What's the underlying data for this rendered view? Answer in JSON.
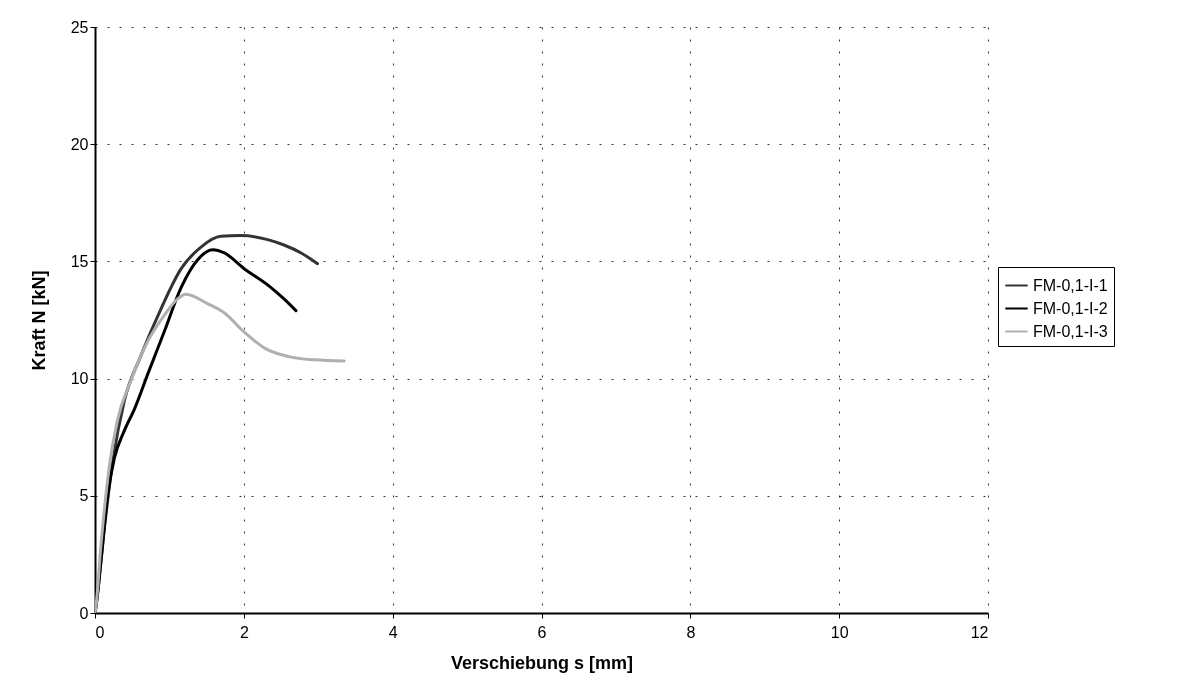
{
  "chart_data": {
    "type": "line",
    "xlabel": "Verschiebung s [mm]",
    "ylabel": "Kraft N [kN]",
    "xlim": [
      0,
      12
    ],
    "xticks": [
      0,
      2,
      4,
      6,
      8,
      10,
      12
    ],
    "ylim": [
      0,
      25
    ],
    "yticks": [
      0,
      5,
      10,
      15,
      20,
      25
    ],
    "grid": true,
    "legend": "right",
    "line_style": "solid",
    "series": [
      {
        "name": "FM-0,1-I-1",
        "color": "#333333",
        "x": [
          0,
          0.01,
          0.125,
          0.24,
          0.39,
          0.62,
          0.89,
          1.16,
          1.42,
          1.69,
          1.96,
          2.32,
          2.54,
          2.77,
          2.99
        ],
        "values": [
          0,
          0.2,
          3.6,
          6.5,
          9.0,
          11.0,
          13.0,
          14.7,
          15.6,
          16.07,
          16.1,
          15.93,
          15.7,
          15.36,
          14.9
        ]
      },
      {
        "name": "FM-0,1-I-2",
        "color": "#000000",
        "x": [
          0,
          0.01,
          0.08,
          0.17,
          0.26,
          0.39,
          0.53,
          0.71,
          0.93,
          1.16,
          1.38,
          1.58,
          1.74,
          2.0,
          2.32,
          2.54,
          2.7
        ],
        "values": [
          0,
          0.2,
          2.2,
          5.0,
          6.6,
          7.75,
          8.7,
          10.2,
          12.0,
          13.9,
          15.07,
          15.5,
          15.36,
          14.7,
          14.0,
          13.4,
          12.9
        ]
      },
      {
        "name": "FM-0,1-I-3",
        "color": "#b0b0b0",
        "x": [
          0,
          0.01,
          0.08,
          0.19,
          0.3,
          0.48,
          0.71,
          0.93,
          1.11,
          1.22,
          1.51,
          1.74,
          2.0,
          2.28,
          2.59,
          2.95,
          3.35
        ],
        "values": [
          0,
          0.2,
          2.9,
          6.2,
          8.2,
          9.9,
          11.6,
          12.7,
          13.4,
          13.6,
          13.2,
          12.8,
          12.0,
          11.3,
          10.95,
          10.8,
          10.75
        ]
      }
    ]
  }
}
